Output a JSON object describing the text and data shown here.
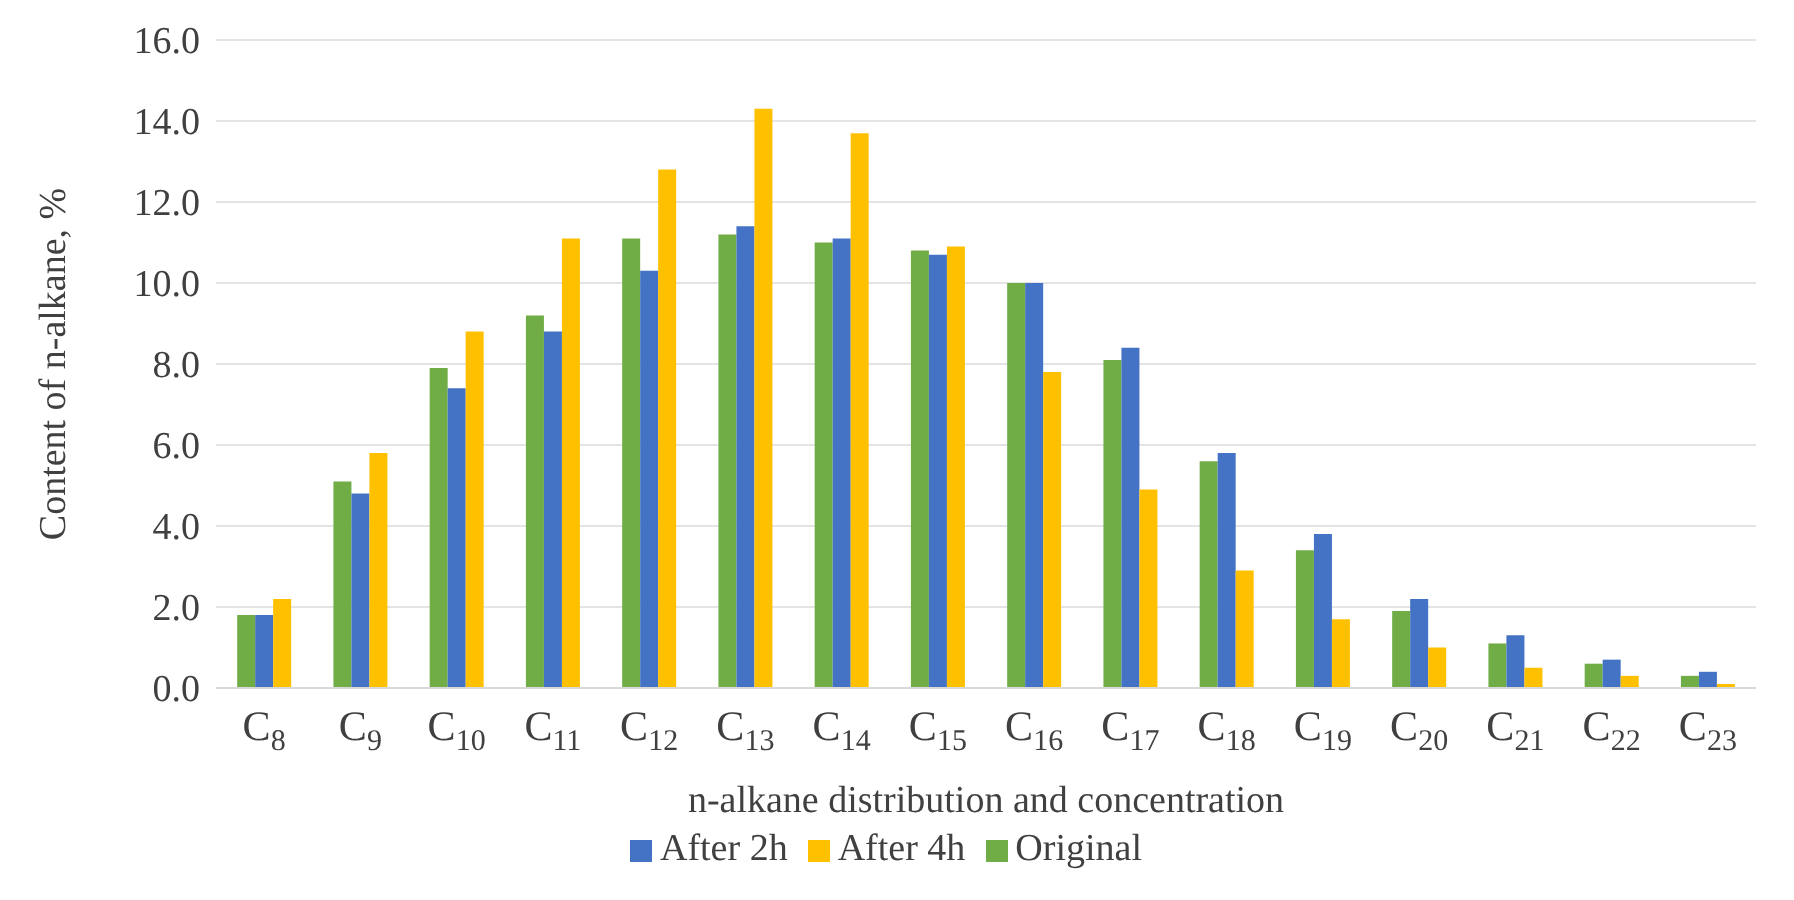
{
  "chart_data": {
    "type": "bar",
    "xlabel": "n-alkane distribution and concentration",
    "ylabel": "Content of n-alkane, %",
    "categories": [
      "C$_{8}$",
      "C$_{9}$",
      "C$_{10}$",
      "C$_{11}$",
      "C$_{12}$",
      "C$_{13}$",
      "C$_{14}$",
      "C$_{15}$",
      "C$_{16}$",
      "C$_{17}$",
      "C$_{18}$",
      "C$_{19}$",
      "C$_{20}$",
      "C$_{21}$",
      "C$_{22}$",
      "C$_{23}$"
    ],
    "series": [
      {
        "name": "Original",
        "color": "#70ad47",
        "values": [
          1.8,
          5.1,
          7.9,
          9.2,
          11.1,
          11.2,
          11.0,
          10.8,
          10.0,
          8.1,
          5.6,
          3.4,
          1.9,
          1.1,
          0.6,
          0.3
        ]
      },
      {
        "name": "After 2h",
        "color": "#4472c4",
        "values": [
          1.8,
          4.8,
          7.4,
          8.8,
          10.3,
          11.4,
          11.1,
          10.7,
          10.0,
          8.4,
          5.8,
          3.8,
          2.2,
          1.3,
          0.7,
          0.4
        ]
      },
      {
        "name": "After 4h",
        "color": "#ffc000",
        "values": [
          2.2,
          5.8,
          8.8,
          11.1,
          12.8,
          14.3,
          13.7,
          10.9,
          7.8,
          4.9,
          2.9,
          1.7,
          1.0,
          0.5,
          0.3,
          0.1
        ]
      }
    ],
    "ylim": [
      0,
      16
    ],
    "yticks": [
      {
        "value": 0,
        "label": "0.0"
      },
      {
        "value": 2,
        "label": "2.0"
      },
      {
        "value": 4,
        "label": "4.0"
      },
      {
        "value": 6,
        "label": "6.0"
      },
      {
        "value": 8,
        "label": "8.0"
      },
      {
        "value": 10,
        "label": "10.0"
      },
      {
        "value": 12,
        "label": "12.0"
      },
      {
        "value": 14,
        "label": "14.0"
      },
      {
        "value": 16,
        "label": "16.0"
      }
    ],
    "grid": "y",
    "legend": "bottom"
  }
}
